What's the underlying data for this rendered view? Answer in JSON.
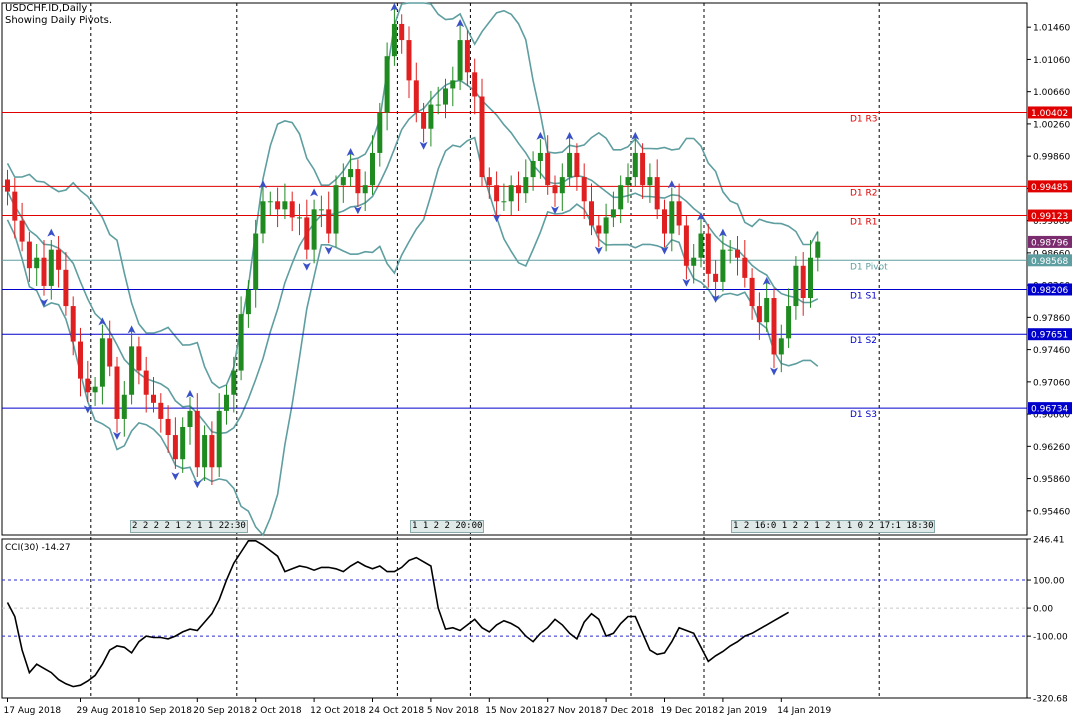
{
  "header": {
    "symbol_line": "USDCHF.ID,Daily",
    "pivots_line": "Showing Daily Pivots."
  },
  "session_strips": [
    {
      "text": "2 2 2 2 1 2 1 1 22:30"
    },
    {
      "text": "1 1 2 2 20:00"
    },
    {
      "text": "1 2 16:0 1 2 2 1 2 1 1 0 2 17:1 18:30"
    }
  ],
  "colors": {
    "bull": "#1f8a1f",
    "bear": "#e02020",
    "band": "#5f9ea0",
    "resistance": "#e00000",
    "support": "#0000cc",
    "pivot": "#5f9ea0",
    "close_tag": "#7b2c6e",
    "fractal": "#3a50c8",
    "cci": "#000000"
  },
  "chart_data": [
    {
      "type": "candlestick",
      "title": "USDCHF.ID,Daily",
      "ylim": [
        0.9516,
        1.0176
      ],
      "y_ticks": [
        "1.01460",
        "1.01060",
        "1.00660",
        "1.00260",
        "0.99860",
        "0.99460",
        "0.99060",
        "0.98660",
        "0.98260",
        "0.97860",
        "0.97460",
        "0.97060",
        "0.96660",
        "0.96260",
        "0.95860",
        "0.95460"
      ],
      "x_labels": [
        {
          "label": "17 Aug 2018",
          "index": 0
        },
        {
          "label": "29 Aug 2018",
          "index": 10
        },
        {
          "label": "10 Sep 2018",
          "index": 18
        },
        {
          "label": "20 Sep 2018",
          "index": 26
        },
        {
          "label": "2 Oct 2018",
          "index": 34
        },
        {
          "label": "12 Oct 2018",
          "index": 42
        },
        {
          "label": "24 Oct 2018",
          "index": 50
        },
        {
          "label": "5 Nov 2018",
          "index": 58
        },
        {
          "label": "15 Nov 2018",
          "index": 66
        },
        {
          "label": "27 Nov 2018",
          "index": 74
        },
        {
          "label": "7 Dec 2018",
          "index": 82
        },
        {
          "label": "19 Dec 2018",
          "index": 90
        },
        {
          "label": "2 Jan 2019",
          "index": 98
        },
        {
          "label": "14 Jan 2019",
          "index": 106
        }
      ],
      "week_separator_indices": [
        11,
        31,
        53,
        63,
        85,
        95,
        119
      ],
      "close": [
        0.9942,
        0.9906,
        0.988,
        0.9847,
        0.986,
        0.9825,
        0.987,
        0.9845,
        0.98,
        0.9756,
        0.971,
        0.9693,
        0.97,
        0.976,
        0.9725,
        0.966,
        0.969,
        0.975,
        0.972,
        0.969,
        0.968,
        0.966,
        0.964,
        0.961,
        0.965,
        0.967,
        0.96,
        0.964,
        0.96,
        0.967,
        0.969,
        0.972,
        0.979,
        0.982,
        0.989,
        0.993,
        0.993,
        0.992,
        0.993,
        0.991,
        0.991,
        0.987,
        0.992,
        0.992,
        0.989,
        0.995,
        0.996,
        0.997,
        0.994,
        0.995,
        0.999,
        1.004,
        1.011,
        1.015,
        1.013,
        1.008,
        1.004,
        1.002,
        1.005,
        1.005,
        1.007,
        1.008,
        1.013,
        1.009,
        1.006,
        0.996,
        0.995,
        0.993,
        0.993,
        0.995,
        0.994,
        0.996,
        0.998,
        0.999,
        0.995,
        0.994,
        0.996,
        0.999,
        0.996,
        0.993,
        0.99,
        0.989,
        0.991,
        0.992,
        0.995,
        0.996,
        0.999,
        0.995,
        0.996,
        0.992,
        0.989,
        0.993,
        0.99,
        0.985,
        0.986,
        0.989,
        0.984,
        0.983,
        0.987,
        0.987,
        0.986,
        0.9835,
        0.98,
        0.978,
        0.981,
        0.974,
        0.976,
        0.98,
        0.985,
        0.981,
        0.986,
        0.988
      ],
      "series": [
        {
          "name": "D1 R3",
          "value": 1.00402
        },
        {
          "name": "D1 R2",
          "value": 0.99485
        },
        {
          "name": "D1 R1",
          "value": 0.99123
        },
        {
          "name": "D1 Pivot",
          "value": 0.98568
        },
        {
          "name": "D1 S1",
          "value": 0.98206
        },
        {
          "name": "D1 S2",
          "value": 0.97651
        },
        {
          "name": "D1 S3",
          "value": 0.96734
        }
      ],
      "price_tags": [
        "1.00402",
        "0.99485",
        "0.99123",
        "0.98796",
        "0.98568",
        "0.98206",
        "0.97651",
        "0.96734"
      ]
    },
    {
      "type": "line",
      "title": "CCI(30) -14.27",
      "ylim": [
        -320.68,
        246.41
      ],
      "y_ticks": [
        "246.41",
        "100.00",
        "0.00",
        "-100.00",
        "-320.68"
      ],
      "reference_levels": [
        100,
        0,
        -100
      ],
      "values": [
        20,
        -30,
        -150,
        -230,
        -200,
        -215,
        -230,
        -255,
        -270,
        -280,
        -275,
        -260,
        -240,
        -200,
        -150,
        -135,
        -140,
        -160,
        -120,
        -100,
        -105,
        -105,
        -110,
        -100,
        -85,
        -75,
        -80,
        -50,
        -20,
        30,
        100,
        160,
        200,
        240,
        240,
        225,
        205,
        185,
        130,
        140,
        150,
        145,
        135,
        145,
        145,
        140,
        130,
        150,
        165,
        150,
        140,
        150,
        130,
        130,
        145,
        170,
        180,
        165,
        150,
        0,
        -75,
        -70,
        -80,
        -60,
        -40,
        -70,
        -85,
        -60,
        -45,
        -55,
        -70,
        -100,
        -120,
        -90,
        -70,
        -40,
        -60,
        -90,
        -110,
        -50,
        -20,
        -40,
        -100,
        -90,
        -55,
        -30,
        -30,
        -90,
        -150,
        -165,
        -160,
        -120,
        -70,
        -80,
        -90,
        -140,
        -190,
        -170,
        -155,
        -135,
        -120,
        -100,
        -90,
        -75,
        -60,
        -45,
        -30,
        -15
      ]
    }
  ]
}
